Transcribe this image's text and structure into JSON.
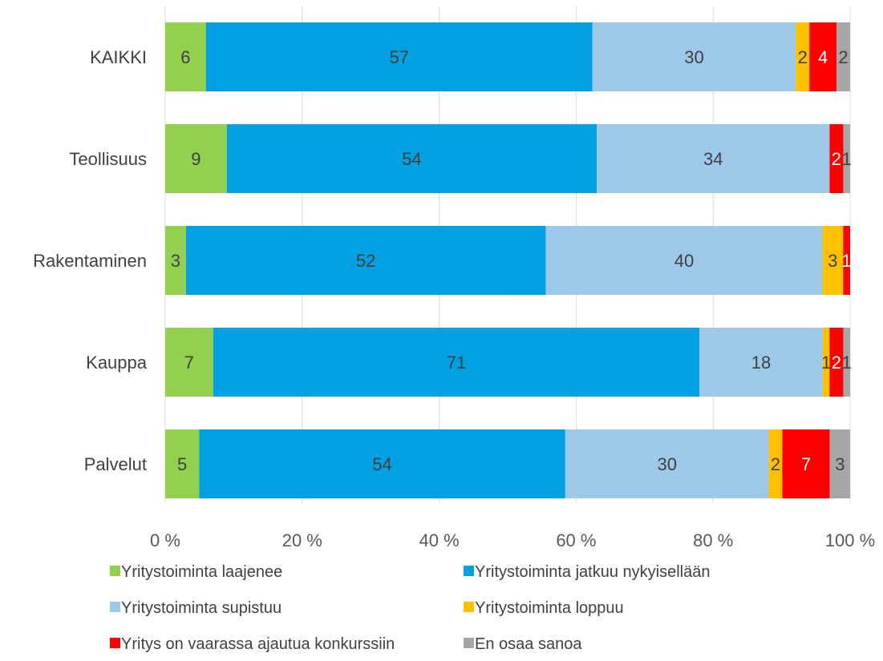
{
  "chart_data": {
    "type": "bar",
    "orientation": "horizontal",
    "stacked": "percent",
    "title": "",
    "xlabel": "",
    "ylabel": "",
    "xlim": [
      0,
      100
    ],
    "x_ticks": [
      "0 %",
      "20 %",
      "40 %",
      "60 %",
      "80 %",
      "100 %"
    ],
    "grid": "vertical",
    "legend_position": "bottom",
    "categories": [
      "KAIKKI",
      "Teollisuus",
      "Rakentaminen",
      "Kauppa",
      "Palvelut"
    ],
    "series": [
      {
        "name": "Yritystoiminta laajenee",
        "color": "#92d050",
        "label_color": "#404040",
        "values": [
          6,
          9,
          3,
          7,
          5
        ]
      },
      {
        "name": "Yritystoiminta jatkuu nykyisellään",
        "color": "#00a0e1",
        "label_color": "#404040",
        "values": [
          57,
          54,
          52,
          71,
          54
        ]
      },
      {
        "name": "Yritystoiminta supistuu",
        "color": "#9dc8e8",
        "label_color": "#404040",
        "values": [
          30,
          34,
          40,
          18,
          30
        ]
      },
      {
        "name": "Yritystoiminta loppuu",
        "color": "#ffc000",
        "label_color": "#404040",
        "values": [
          2,
          0,
          3,
          1,
          2
        ]
      },
      {
        "name": "Yritys on vaarassa ajautua konkurssiin",
        "color": "#ff0000",
        "label_color": "#ffffff",
        "values": [
          4,
          2,
          1,
          2,
          7
        ]
      },
      {
        "name": "En osaa sanoa",
        "color": "#a6a6a6",
        "label_color": "#404040",
        "values": [
          2,
          1,
          0,
          1,
          3
        ]
      }
    ]
  }
}
